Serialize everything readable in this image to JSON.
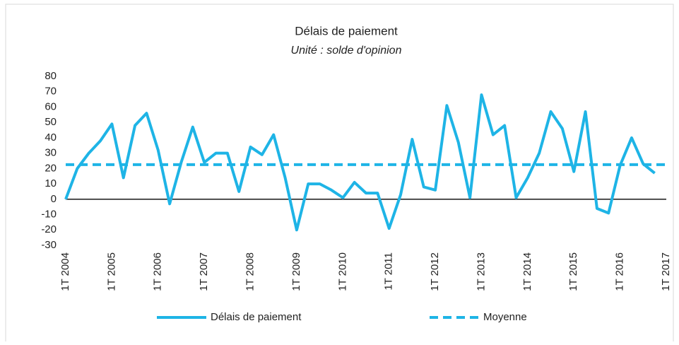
{
  "chart_data": {
    "type": "line",
    "title": "Délais de paiement",
    "subtitle": "Unité : solde d'opinion",
    "categories": [
      "1T 2004",
      null,
      null,
      null,
      "1T 2005",
      null,
      null,
      null,
      "1T 2006",
      null,
      null,
      null,
      "1T 2007",
      null,
      null,
      null,
      "1T 2008",
      null,
      null,
      null,
      "1T 2009",
      null,
      null,
      null,
      "1T 2010",
      null,
      null,
      null,
      "1T 2011",
      null,
      null,
      null,
      "1T 2012",
      null,
      null,
      null,
      "1T 2013",
      null,
      null,
      null,
      "1T 2014",
      null,
      null,
      null,
      "1T 2015",
      null,
      null,
      null,
      "1T 2016",
      null,
      null,
      null,
      "1T 2017"
    ],
    "series": [
      {
        "name": "Délais de paiement",
        "color": "#1eb4e6",
        "line_style": "solid",
        "values": [
          0,
          20,
          30,
          38,
          49,
          14,
          48,
          56,
          32,
          -3,
          24,
          47,
          24,
          30,
          30,
          5,
          34,
          29,
          42,
          14,
          -20,
          10,
          10,
          6,
          1,
          11,
          4,
          4,
          -19,
          3,
          39,
          8,
          6,
          61,
          37,
          1,
          68,
          42,
          48,
          1,
          14,
          30,
          57,
          46,
          18,
          57,
          -6,
          -9,
          22,
          40,
          23,
          17,
          null
        ]
      },
      {
        "name": "Moyenne",
        "color": "#1eb4e6",
        "line_style": "dashed",
        "values": [
          22.5,
          22.5,
          22.5,
          22.5,
          22.5,
          22.5,
          22.5,
          22.5,
          22.5,
          22.5,
          22.5,
          22.5,
          22.5,
          22.5,
          22.5,
          22.5,
          22.5,
          22.5,
          22.5,
          22.5,
          22.5,
          22.5,
          22.5,
          22.5,
          22.5,
          22.5,
          22.5,
          22.5,
          22.5,
          22.5,
          22.5,
          22.5,
          22.5,
          22.5,
          22.5,
          22.5,
          22.5,
          22.5,
          22.5,
          22.5,
          22.5,
          22.5,
          22.5,
          22.5,
          22.5,
          22.5,
          22.5,
          22.5,
          22.5,
          22.5,
          22.5,
          22.5,
          22.5
        ]
      }
    ],
    "ylim": [
      -30,
      80
    ],
    "yticks": [
      -30,
      -20,
      -10,
      0,
      10,
      20,
      30,
      40,
      50,
      60,
      70,
      80
    ],
    "grid": false,
    "legend": "bottom"
  }
}
